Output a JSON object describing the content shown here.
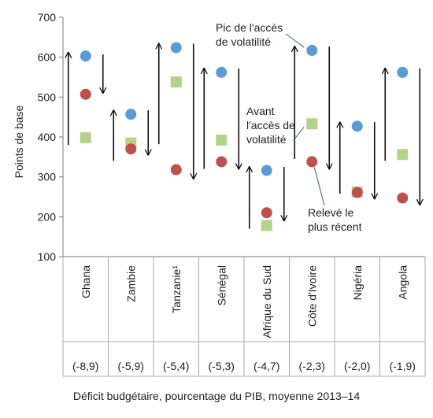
{
  "chart_data": {
    "type": "scatter",
    "title": "",
    "ylabel": "Points de base",
    "xlabel": "Déficit budgétaire, pourcentage du PIB, moyenne 2013–14",
    "ylim": [
      100,
      700
    ],
    "yticks": [
      "100",
      "200",
      "300",
      "400",
      "500",
      "600",
      "700"
    ],
    "grid": false,
    "categories": [
      "Ghana",
      "Zambie",
      "Tanzanie¹",
      "Sénégal",
      "Afrique du Sud",
      "Côte d'Ivoire",
      "Nigéria",
      "Angola"
    ],
    "deficits": [
      "(-8,9)",
      "(-5,9)",
      "(-5,4)",
      "(-5,3)",
      "(-4,7)",
      "(-2,3)",
      "(-2,0)",
      "(-1,9)"
    ],
    "series": [
      {
        "name": "Pic de l'accès de volatilité",
        "marker": "circle",
        "color": "#5b9bd5",
        "values": [
          603,
          457,
          624,
          562,
          316,
          617,
          427,
          562
        ]
      },
      {
        "name": "Avant l'accès de volatilité",
        "marker": "square",
        "color": "#b5d28b",
        "values": [
          398,
          385,
          538,
          392,
          178,
          433,
          262,
          356
        ]
      },
      {
        "name": "Relevé le plus récent",
        "marker": "circle",
        "color": "#c0504d",
        "values": [
          507,
          370,
          318,
          338,
          210,
          338,
          261,
          247
        ]
      }
    ],
    "arrows": [
      {
        "up": [
          380,
          612
        ],
        "down": [
          607,
          510
        ]
      },
      {
        "up": [
          340,
          467
        ],
        "down": [
          467,
          355
        ]
      },
      {
        "up": [
          382,
          634
        ],
        "down": [
          634,
          295
        ]
      },
      {
        "up": [
          320,
          572
        ],
        "down": [
          572,
          320
        ]
      },
      {
        "up": [
          170,
          325
        ],
        "down": [
          325,
          190
        ]
      },
      {
        "up": [
          345,
          627
        ],
        "down": [
          627,
          320
        ]
      },
      {
        "up": [
          258,
          437
        ],
        "down": [
          437,
          245
        ]
      },
      {
        "up": [
          340,
          572
        ],
        "down": [
          572,
          230
        ]
      }
    ],
    "annotations": [
      {
        "lines": [
          "Pic de l'accès",
          "de volatilité"
        ],
        "points_to": "Côte d'Ivoire peak"
      },
      {
        "lines": [
          "Avant",
          "l'accès de",
          "volatilité"
        ],
        "points_to": "Côte d'Ivoire before"
      },
      {
        "lines": [
          "Relevé le",
          "plus récent"
        ],
        "points_to": "Côte d'Ivoire recent"
      }
    ]
  }
}
